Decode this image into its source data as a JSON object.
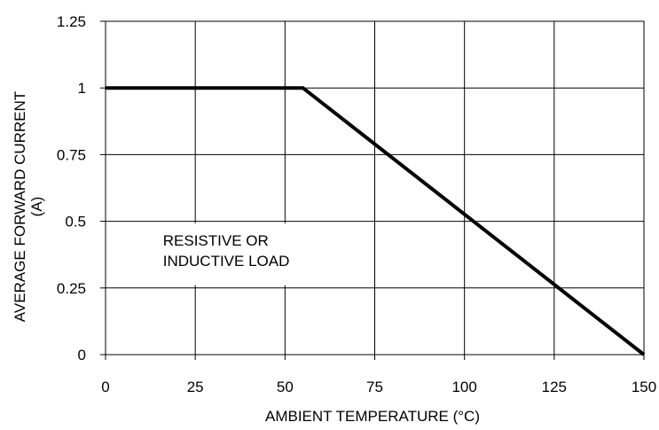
{
  "chart_data": {
    "type": "line",
    "xlabel": "AMBIENT TEMPERATURE (°C)",
    "ylabel_line1": "AVERAGE FORWARD CURRENT",
    "ylabel_line2": "(A)",
    "xlim": [
      0,
      150
    ],
    "ylim": [
      0,
      1.25
    ],
    "grid": true,
    "x_ticks": [
      0,
      25,
      50,
      75,
      100,
      125,
      150
    ],
    "x_tick_labels": [
      "0",
      "25",
      "50",
      "75",
      "100",
      "125",
      "150"
    ],
    "y_ticks": [
      0,
      0.25,
      0.5,
      0.75,
      1,
      1.25
    ],
    "y_tick_labels": [
      "0",
      "0.25",
      "0.5",
      "0.75",
      "1",
      "1.25"
    ],
    "series": [
      {
        "x": [
          0,
          55,
          150
        ],
        "y": [
          1,
          1,
          0
        ]
      }
    ],
    "annotation": {
      "lines": [
        "RESISTIVE OR",
        "INDUCTIVE LOAD"
      ],
      "x": 16,
      "y": 0.3
    }
  }
}
